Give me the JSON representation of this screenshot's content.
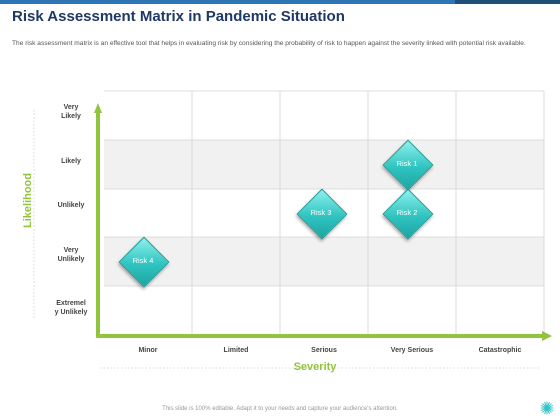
{
  "header": {
    "title": "Risk Assessment Matrix in Pandemic Situation",
    "description": "The risk assessment matrix is an effective tool that helps in evaluating risk by considering the probability of risk to happen against the severity linked with potential risk available."
  },
  "matrix": {
    "y_axis_title": "Likelihood",
    "x_axis_title": "Severity",
    "likelihood_levels": [
      {
        "line1": "Very",
        "line2": "Likely"
      },
      {
        "line1": "Likely",
        "line2": ""
      },
      {
        "line1": "Unlikely",
        "line2": ""
      },
      {
        "line1": "Very",
        "line2": "Unlikely"
      },
      {
        "line1": "Extremel",
        "line2": "y Unlikely"
      }
    ],
    "severity_levels": [
      "Minor",
      "Limited",
      "Serious",
      "Very Serious",
      "Catastrophic"
    ],
    "risks": [
      {
        "label": "Risk 1",
        "severity": "Very Serious",
        "likelihood": "Likely"
      },
      {
        "label": "Risk 2",
        "severity": "Very Serious",
        "likelihood": "Unlikely"
      },
      {
        "label": "Risk 3",
        "severity": "Serious",
        "likelihood": "Unlikely"
      },
      {
        "label": "Risk 4",
        "severity": "Minor",
        "likelihood": "Very Unlikely"
      }
    ],
    "colors": {
      "axis_arrow": "#92c33f",
      "diamond": "#2fc4c0",
      "title": "#1f3864"
    }
  },
  "footer": {
    "note": "This slide is 100% editable. Adapt it to your needs and capture your audience's attention."
  }
}
